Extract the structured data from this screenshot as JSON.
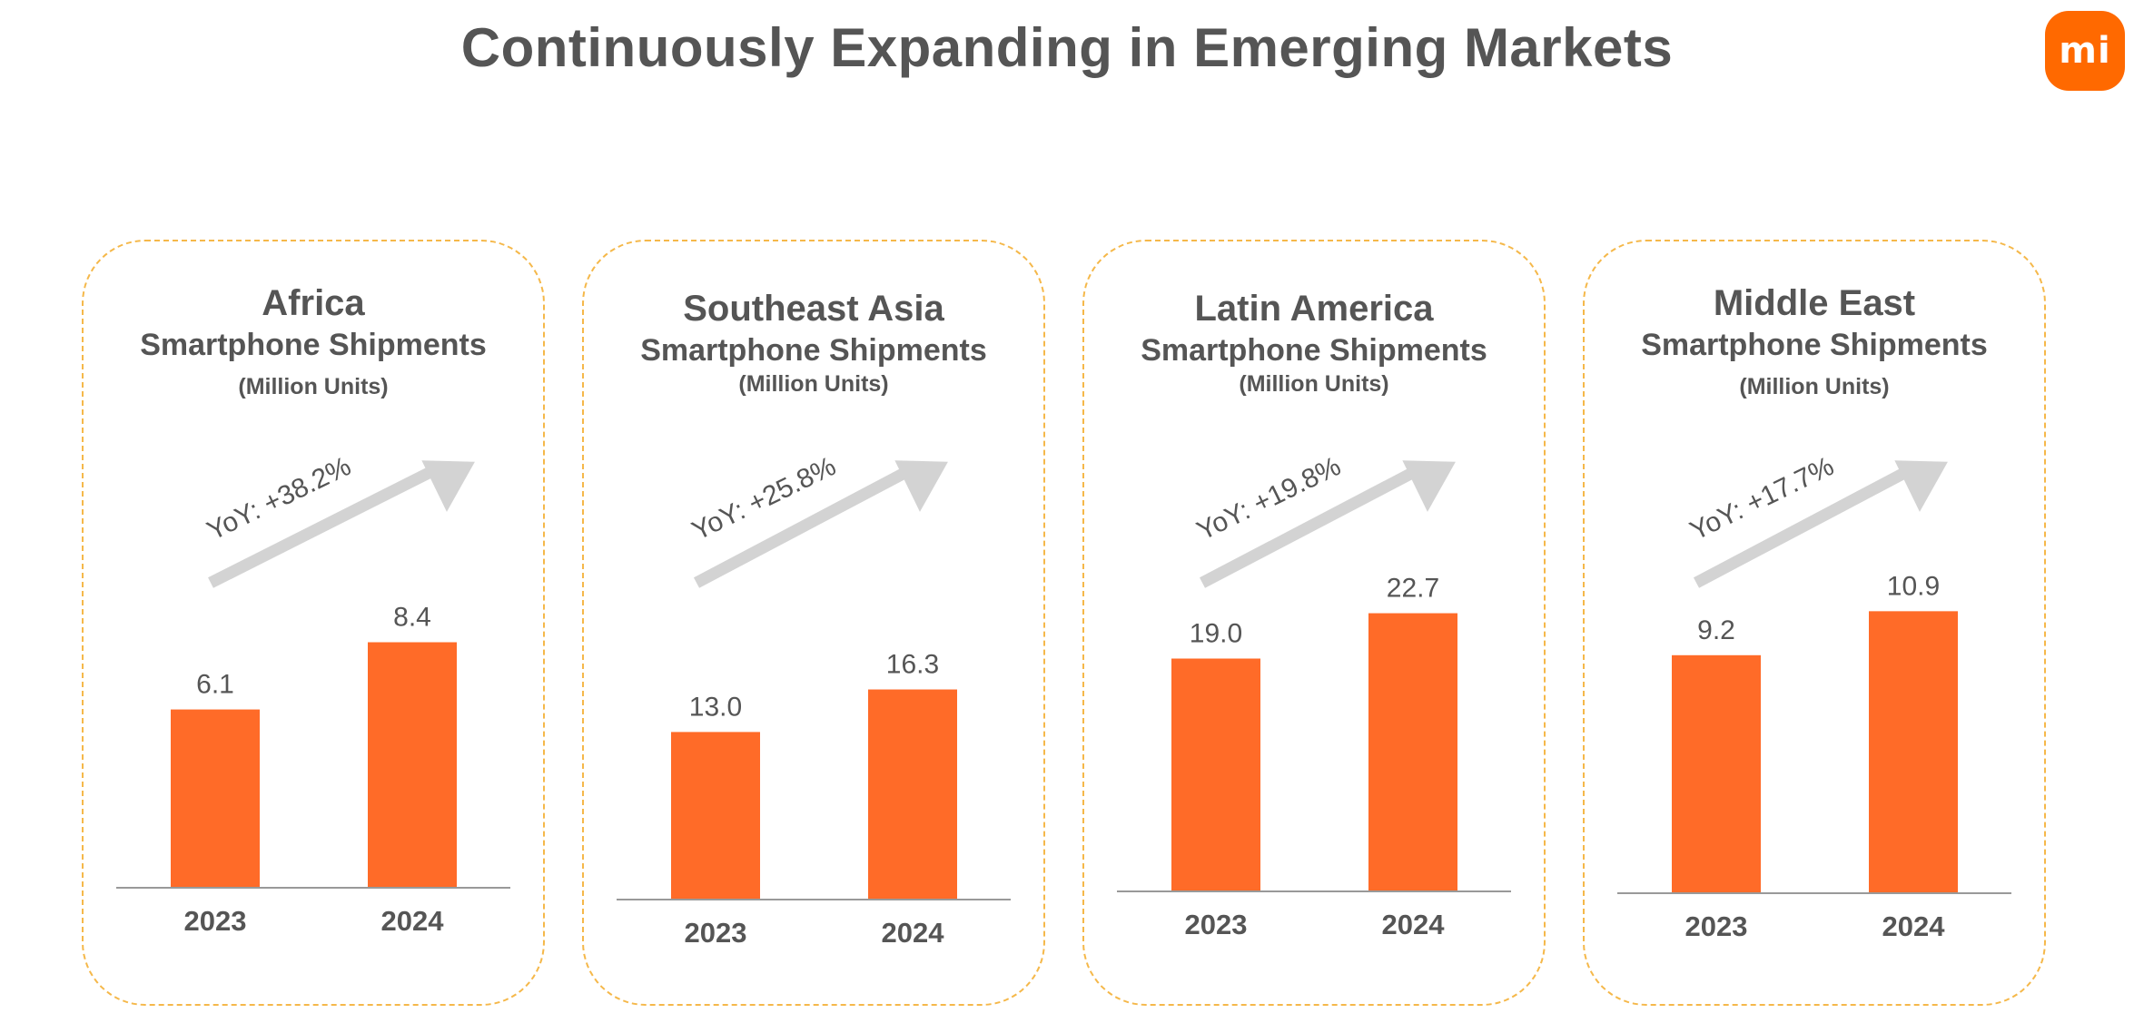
{
  "page": {
    "title": "Continuously Expanding in Emerging Markets",
    "logo_text": "mi",
    "logo_color": "#ff6900"
  },
  "colors": {
    "bar": "#ff6b28",
    "axis": "#999999",
    "arrow": "#d3d3d3",
    "card_border": "#f5b84a",
    "text": "#555555"
  },
  "cards": [
    {
      "region": "Africa",
      "subtitle": "Smartphone Shipments",
      "units": "(Million Units)",
      "yoy": "YoY: +38.2%"
    },
    {
      "region": "Southeast Asia",
      "subtitle": "Smartphone Shipments",
      "units": "(Million Units)",
      "yoy": "YoY: +25.8%"
    },
    {
      "region": "Latin America",
      "subtitle": "Smartphone Shipments",
      "units": "(Million Units)",
      "yoy": "YoY: +19.8%"
    },
    {
      "region": "Middle East",
      "subtitle": "Smartphone Shipments",
      "units": "(Million Units)",
      "yoy": "YoY: +17.7%"
    }
  ],
  "chart_data": [
    {
      "type": "bar",
      "title": "Africa",
      "subtitle": "Smartphone Shipments",
      "unit": "(Million Units)",
      "categories": [
        "2023",
        "2024"
      ],
      "values": [
        6.1,
        8.4
      ],
      "value_labels": [
        "6.1",
        "8.4"
      ],
      "annotation": "YoY: +38.2%",
      "grid": false
    },
    {
      "type": "bar",
      "title": "Southeast Asia",
      "subtitle": "Smartphone Shipments",
      "unit": "(Million Units)",
      "categories": [
        "2023",
        "2024"
      ],
      "values": [
        13.0,
        16.3
      ],
      "value_labels": [
        "13.0",
        "16.3"
      ],
      "annotation": "YoY: +25.8%",
      "grid": false
    },
    {
      "type": "bar",
      "title": "Latin America",
      "subtitle": "Smartphone Shipments",
      "unit": "(Million Units)",
      "categories": [
        "2023",
        "2024"
      ],
      "values": [
        19.0,
        22.7
      ],
      "value_labels": [
        "19.0",
        "22.7"
      ],
      "annotation": "YoY: +19.8%",
      "grid": false
    },
    {
      "type": "bar",
      "title": "Middle East",
      "subtitle": "Smartphone Shipments",
      "unit": "(Million Units)",
      "categories": [
        "2023",
        "2024"
      ],
      "values": [
        9.2,
        10.9
      ],
      "value_labels": [
        "9.2",
        "10.9"
      ],
      "annotation": "YoY: +17.7%",
      "grid": false
    }
  ]
}
